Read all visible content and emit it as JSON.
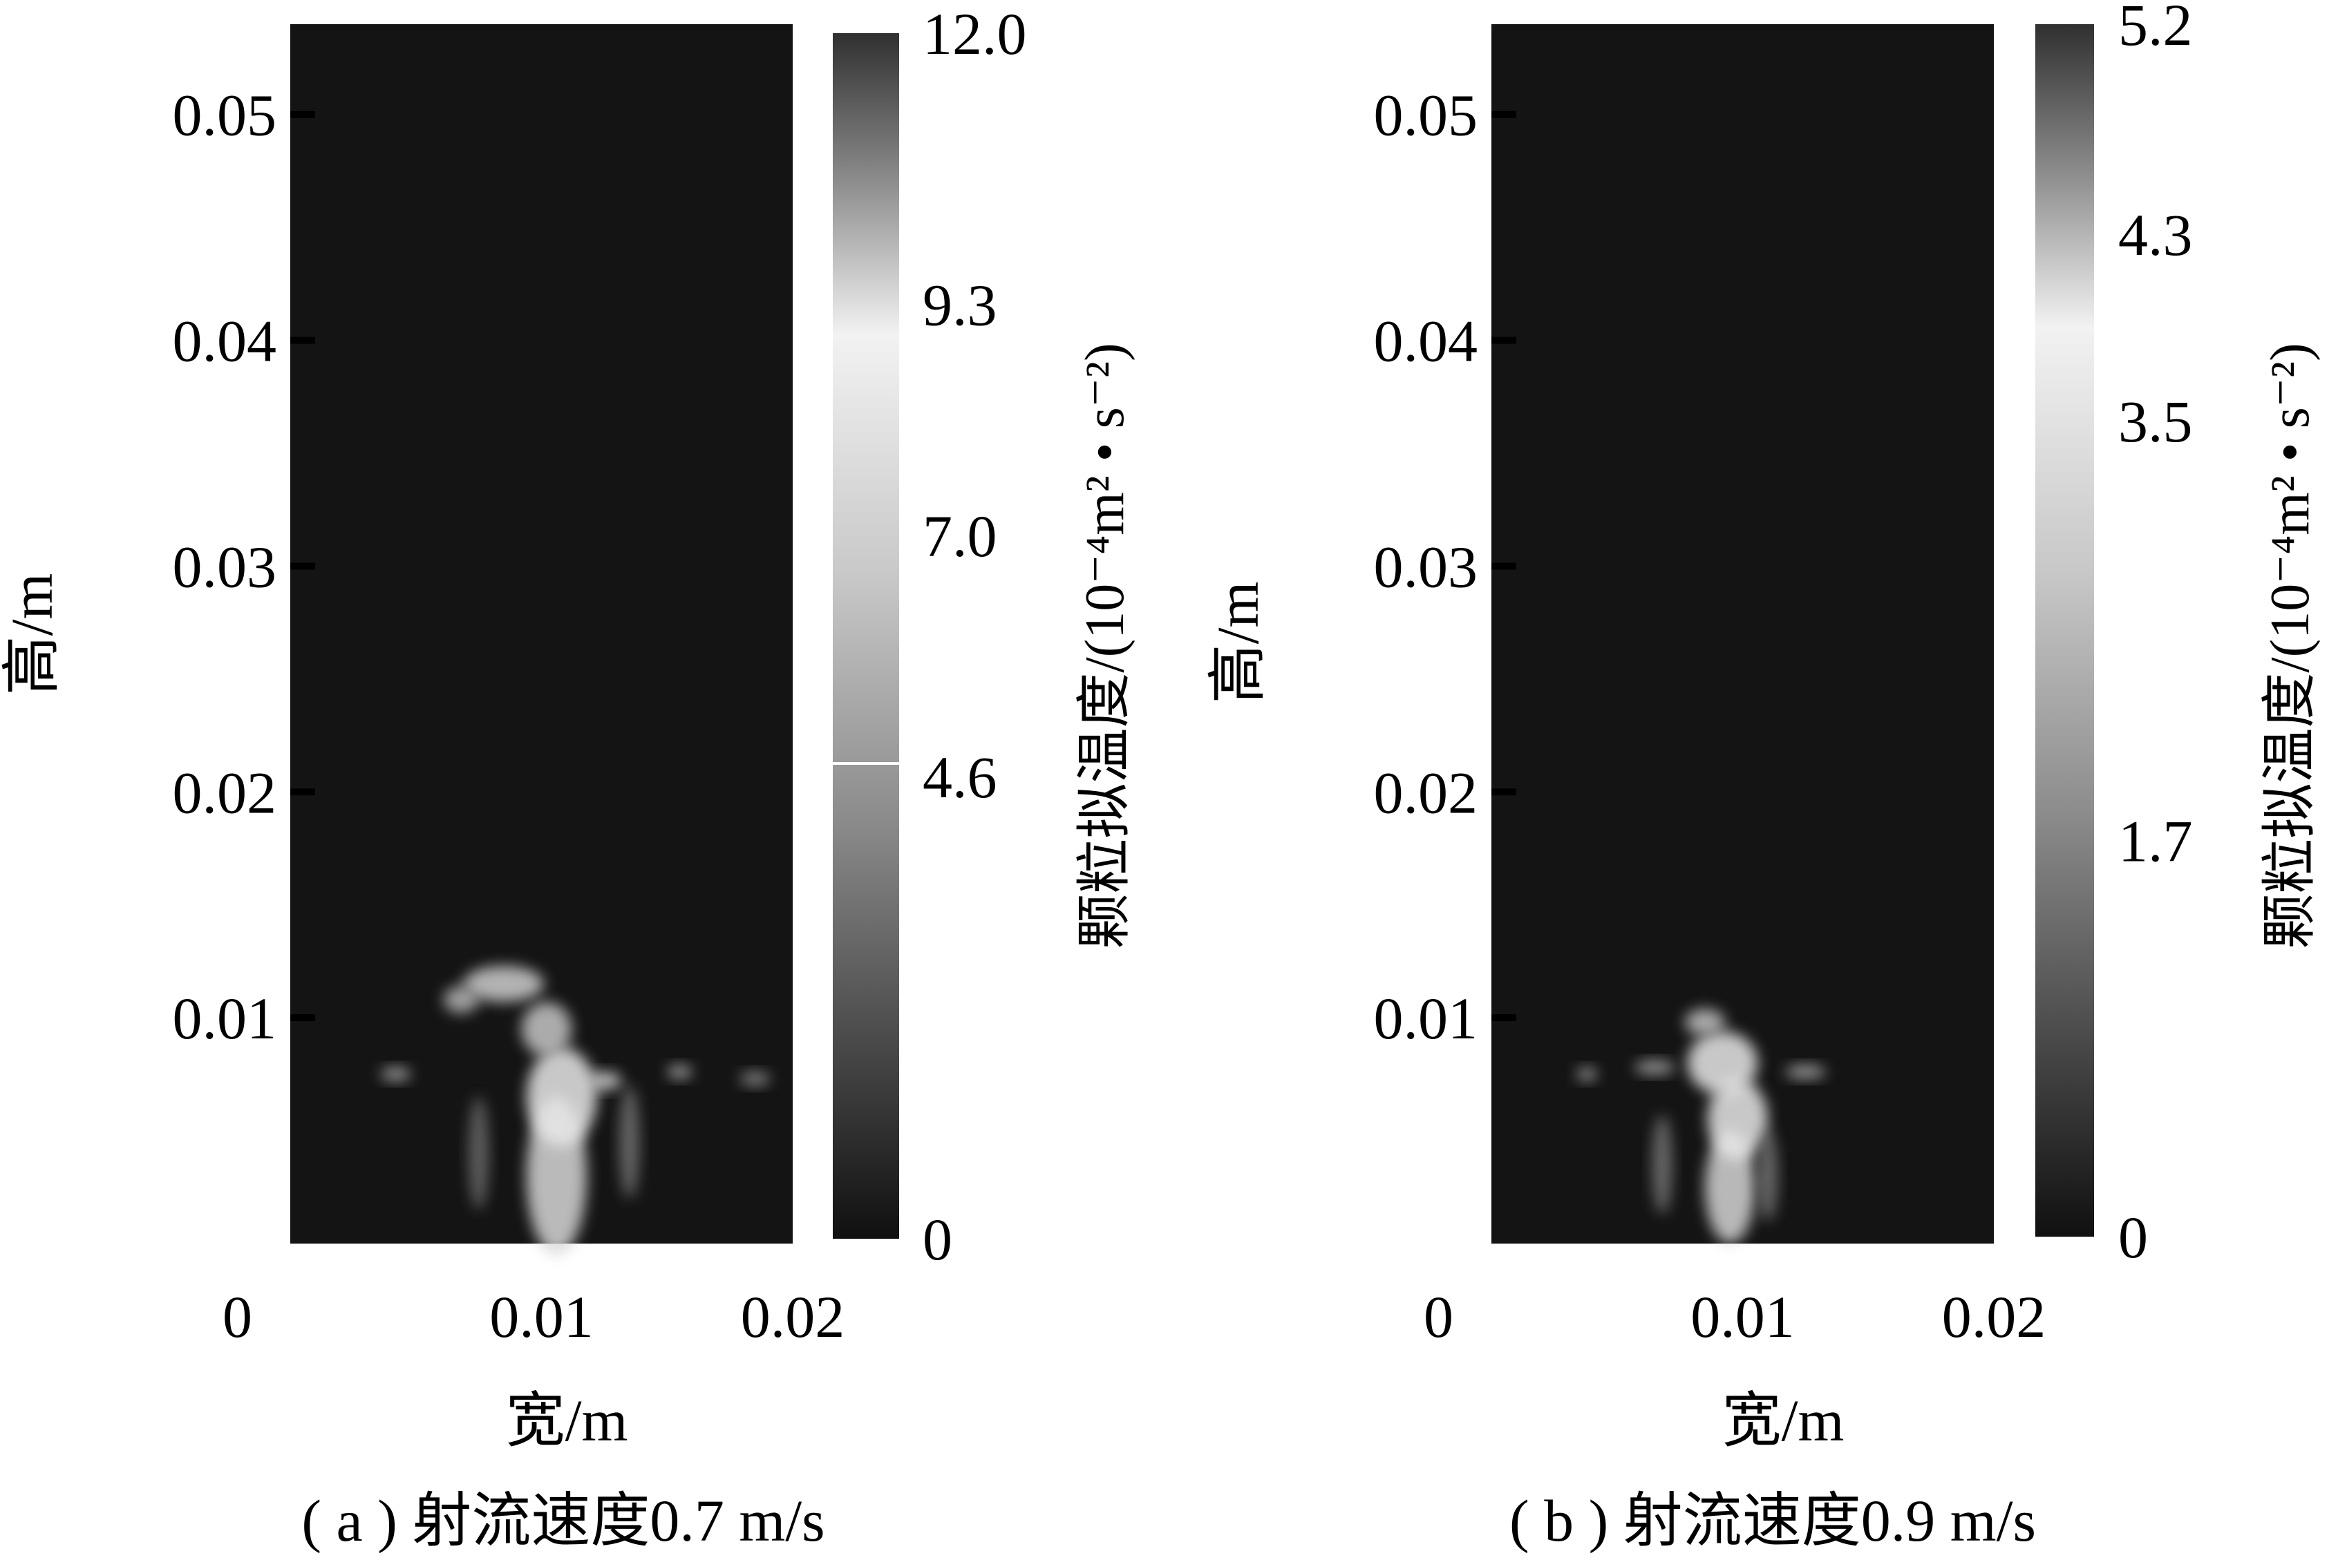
{
  "figure": {
    "background": "#ffffff",
    "plot_background": "#141414"
  },
  "chart_data": [
    {
      "type": "heatmap",
      "caption": "( a ) 射流速度0.7 m/s",
      "xlabel": "宽/m",
      "ylabel": "高/m",
      "xlim": [
        0,
        0.02
      ],
      "ylim": [
        0,
        0.054
      ],
      "xticks": [
        "0",
        "0.01",
        "0.02"
      ],
      "xtick_values": [
        0,
        0.01,
        0.02
      ],
      "yticks": [
        "0.01",
        "0.02",
        "0.03",
        "0.04",
        "0.05"
      ],
      "ytick_values": [
        0.01,
        0.02,
        0.03,
        0.04,
        0.05
      ],
      "colorbar": {
        "label": "颗粒拟温度/(10⁻⁴m² • s⁻²)",
        "ticks": [
          "0",
          "4.6",
          "7.0",
          "9.3",
          "12.0"
        ],
        "tick_values": [
          0,
          4.6,
          7.0,
          9.3,
          12.0
        ],
        "range": [
          0,
          12.0
        ]
      },
      "hotspots": [
        {
          "x": 0.0106,
          "y": 0.003,
          "v": 10.5,
          "rx": 0.0012,
          "ry": 0.0035
        },
        {
          "x": 0.0108,
          "y": 0.0065,
          "v": 11.5,
          "rx": 0.0014,
          "ry": 0.0022
        },
        {
          "x": 0.0102,
          "y": 0.0095,
          "v": 9.5,
          "rx": 0.001,
          "ry": 0.0012
        },
        {
          "x": 0.0085,
          "y": 0.0115,
          "v": 10.0,
          "rx": 0.0016,
          "ry": 0.0008
        },
        {
          "x": 0.0068,
          "y": 0.0108,
          "v": 8.5,
          "rx": 0.0007,
          "ry": 0.0006
        },
        {
          "x": 0.0042,
          "y": 0.0075,
          "v": 8.0,
          "rx": 0.0006,
          "ry": 0.0003
        },
        {
          "x": 0.0125,
          "y": 0.0072,
          "v": 10.5,
          "rx": 0.0007,
          "ry": 0.0004
        },
        {
          "x": 0.0155,
          "y": 0.0076,
          "v": 8.0,
          "rx": 0.0005,
          "ry": 0.0003
        },
        {
          "x": 0.0185,
          "y": 0.0073,
          "v": 6.5,
          "rx": 0.0006,
          "ry": 0.0003
        },
        {
          "x": 0.0135,
          "y": 0.0045,
          "v": 4.5,
          "rx": 0.0004,
          "ry": 0.0025
        },
        {
          "x": 0.0075,
          "y": 0.004,
          "v": 4.0,
          "rx": 0.0004,
          "ry": 0.0025
        }
      ]
    },
    {
      "type": "heatmap",
      "caption": "( b ) 射流速度0.9 m/s",
      "xlabel": "宽/m",
      "ylabel": "高/m",
      "xlim": [
        0,
        0.02
      ],
      "ylim": [
        0,
        0.054
      ],
      "xticks": [
        "0",
        "0.01",
        "0.02"
      ],
      "xtick_values": [
        0,
        0.01,
        0.02
      ],
      "yticks": [
        "0.01",
        "0.02",
        "0.03",
        "0.04",
        "0.05"
      ],
      "ytick_values": [
        0.01,
        0.02,
        0.03,
        0.04,
        0.05
      ],
      "colorbar": {
        "label": "颗粒拟温度/(10⁻⁴m² • s⁻²)",
        "ticks": [
          "0",
          "1.7",
          "3.5",
          "4.3",
          "5.2"
        ],
        "tick_values": [
          0,
          1.7,
          3.5,
          4.3,
          5.2
        ],
        "range": [
          0,
          5.2
        ]
      },
      "hotspots": [
        {
          "x": 0.0095,
          "y": 0.0025,
          "v": 4.5,
          "rx": 0.001,
          "ry": 0.0025
        },
        {
          "x": 0.0098,
          "y": 0.0055,
          "v": 5.0,
          "rx": 0.0012,
          "ry": 0.0018
        },
        {
          "x": 0.0092,
          "y": 0.008,
          "v": 5.0,
          "rx": 0.0014,
          "ry": 0.0014
        },
        {
          "x": 0.0085,
          "y": 0.0098,
          "v": 4.0,
          "rx": 0.0008,
          "ry": 0.0006
        },
        {
          "x": 0.0038,
          "y": 0.0075,
          "v": 3.2,
          "rx": 0.0004,
          "ry": 0.0003
        },
        {
          "x": 0.0065,
          "y": 0.0078,
          "v": 3.5,
          "rx": 0.0008,
          "ry": 0.0003
        },
        {
          "x": 0.0125,
          "y": 0.0076,
          "v": 3.5,
          "rx": 0.0008,
          "ry": 0.0003
        },
        {
          "x": 0.0068,
          "y": 0.0035,
          "v": 2.0,
          "rx": 0.0004,
          "ry": 0.0022
        },
        {
          "x": 0.011,
          "y": 0.003,
          "v": 2.0,
          "rx": 0.0004,
          "ry": 0.002
        }
      ]
    }
  ]
}
